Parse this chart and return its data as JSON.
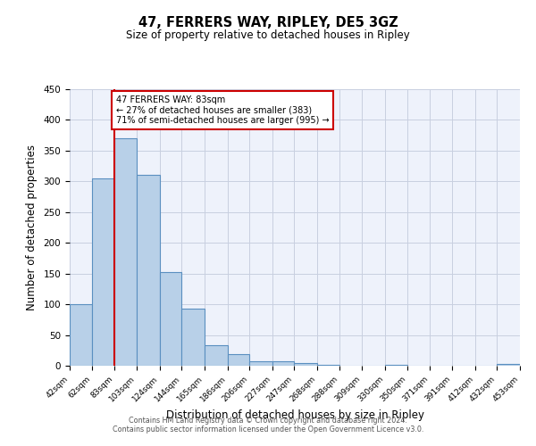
{
  "title": "47, FERRERS WAY, RIPLEY, DE5 3GZ",
  "subtitle": "Size of property relative to detached houses in Ripley",
  "xlabel": "Distribution of detached houses by size in Ripley",
  "ylabel": "Number of detached properties",
  "bin_edges": [
    42,
    62,
    83,
    103,
    124,
    144,
    165,
    186,
    206,
    227,
    247,
    268,
    288,
    309,
    330,
    350,
    371,
    391,
    412,
    432,
    453
  ],
  "bar_heights": [
    100,
    305,
    370,
    310,
    153,
    93,
    34,
    19,
    7,
    7,
    4,
    1,
    0,
    0,
    1,
    0,
    0,
    0,
    0,
    3
  ],
  "tick_labels": [
    "42sqm",
    "62sqm",
    "83sqm",
    "103sqm",
    "124sqm",
    "144sqm",
    "165sqm",
    "186sqm",
    "206sqm",
    "227sqm",
    "247sqm",
    "268sqm",
    "288sqm",
    "309sqm",
    "330sqm",
    "350sqm",
    "371sqm",
    "391sqm",
    "412sqm",
    "432sqm",
    "453sqm"
  ],
  "property_size": 83,
  "bar_color": "#b8d0e8",
  "bar_edge_color": "#5a8fc0",
  "vline_color": "#cc0000",
  "annotation_box_color": "#cc0000",
  "annotation_line1": "47 FERRERS WAY: 83sqm",
  "annotation_line2": "← 27% of detached houses are smaller (383)",
  "annotation_line3": "71% of semi-detached houses are larger (995) →",
  "ylim": [
    0,
    450
  ],
  "background_color": "#eef2fb",
  "grid_color": "#c8cfe0",
  "footer_line1": "Contains HM Land Registry data © Crown copyright and database right 2024.",
  "footer_line2": "Contains public sector information licensed under the Open Government Licence v3.0."
}
